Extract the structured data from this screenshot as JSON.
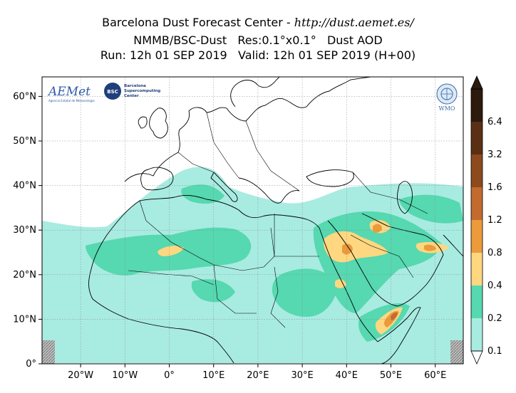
{
  "title": {
    "center_name": "Barcelona Dust Forecast Center",
    "separator": " - ",
    "url": "http://dust.aemet.es/",
    "model": "NMMB/BSC-Dust",
    "resolution": "Res:0.1°x0.1°",
    "variable": "Dust AOD",
    "run": "Run: 12h 01 SEP 2019",
    "valid": "Valid: 12h 01 SEP 2019 (H+00)"
  },
  "axes": {
    "lat_ticks": [
      "0°",
      "10°N",
      "20°N",
      "30°N",
      "40°N",
      "50°N",
      "60°N"
    ],
    "lon_ticks": [
      "20°W",
      "10°W",
      "0°",
      "10°E",
      "20°E",
      "30°E",
      "40°E",
      "50°E",
      "60°E"
    ]
  },
  "colorbar": {
    "labels": [
      "0.1",
      "0.2",
      "0.4",
      "0.8",
      "1.2",
      "1.6",
      "3.2",
      "6.4"
    ],
    "colors": [
      "#a8ebe1",
      "#56d8b0",
      "#ffd780",
      "#ec9a3c",
      "#c36a2f",
      "#8c4a1e",
      "#5a2f14",
      "#2c1a0c"
    ]
  },
  "logos": {
    "aemet": "AEMet",
    "aemet_sub": "Agencia Estatal de Meteorología",
    "bsc": "BSC",
    "bsc_text": [
      "Barcelona",
      "Supercomputing",
      "Center"
    ],
    "wmo": "WMO"
  }
}
